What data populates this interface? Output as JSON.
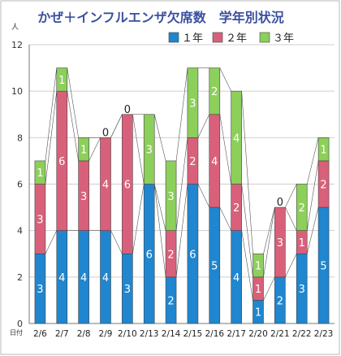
{
  "chart_data": {
    "type": "bar",
    "stacked": true,
    "title": "かぜ＋インフルエンザ欠席数　学年別状況",
    "ylabel": "人",
    "xlabel": "日付",
    "ylim": [
      0,
      12
    ],
    "yticks": [
      0,
      2,
      4,
      6,
      8,
      10,
      12
    ],
    "grid": true,
    "legend_position": "top-right",
    "categories": [
      "2/6",
      "2/7",
      "2/8",
      "2/9",
      "2/10",
      "2/13",
      "2/14",
      "2/15",
      "2/16",
      "2/17",
      "2/20",
      "2/21",
      "2/22",
      "2/23"
    ],
    "category_labels": [
      "2/6",
      "2/7",
      "2/8",
      "2/9",
      "2/10",
      "2/13",
      "2/14",
      "2/15",
      "2/16",
      "2/17",
      "2/20",
      "2/21",
      "2/22",
      "2/23"
    ],
    "series": [
      {
        "name": "１年",
        "color": "#1f86cf",
        "values": [
          3,
          4,
          4,
          4,
          3,
          6,
          2,
          6,
          5,
          4,
          1,
          2,
          3,
          5
        ]
      },
      {
        "name": "２年",
        "color": "#d9607a",
        "values": [
          3,
          6,
          3,
          4,
          6,
          0,
          2,
          2,
          4,
          2,
          1,
          3,
          1,
          2
        ]
      },
      {
        "name": "３年",
        "color": "#8ccf5a",
        "values": [
          1,
          1,
          1,
          0,
          0,
          3,
          3,
          3,
          2,
          4,
          1,
          0,
          2,
          1
        ]
      }
    ]
  }
}
